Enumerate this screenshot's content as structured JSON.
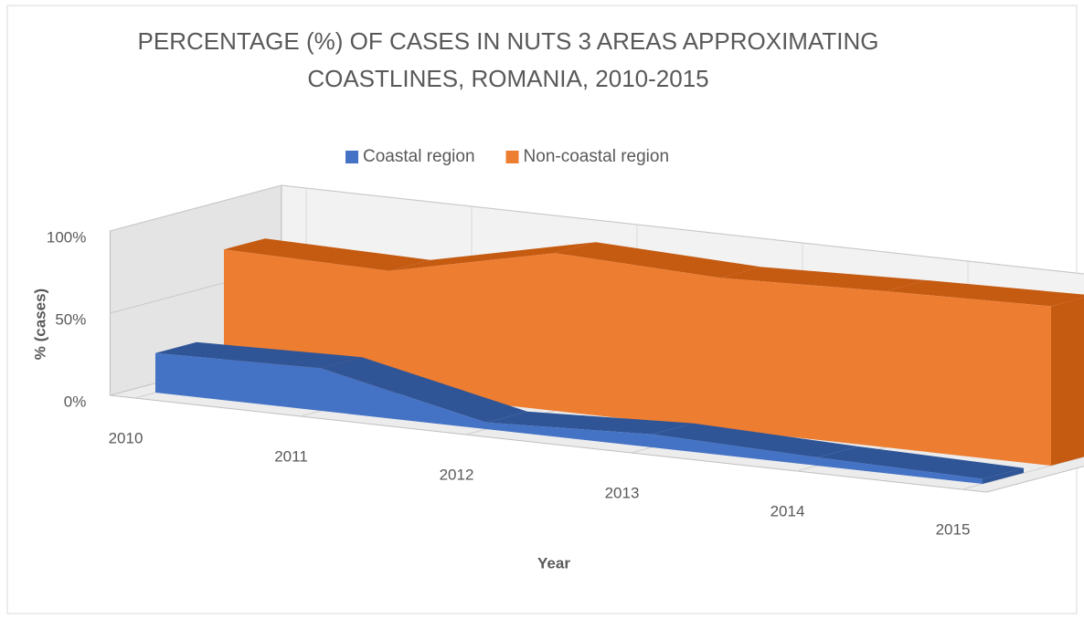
{
  "chart_data": {
    "type": "area3d",
    "title": [
      "PERCENTAGE (%) OF CASES IN NUTS 3 AREAS APPROXIMATING",
      "COASTLINES, ROMANIA, 2010-2015"
    ],
    "x_label": "Year",
    "y_label": "% (cases)",
    "categories": [
      "2010",
      "2011",
      "2012",
      "2013",
      "2014",
      "2015"
    ],
    "series": [
      {
        "name": "Coastal region",
        "color": "#4472c4",
        "top_color": "#2f5597",
        "values": [
          24,
          26,
          4,
          8,
          5,
          3
        ]
      },
      {
        "name": "Non-coastal region",
        "color": "#ed7d31",
        "top_color": "#c55a11",
        "values": [
          76,
          74,
          96,
          92,
          95,
          97
        ]
      }
    ],
    "ylim": [
      0,
      100
    ],
    "yticks": [
      {
        "value": 0,
        "label": "0%"
      },
      {
        "value": 50,
        "label": "50%"
      },
      {
        "value": 100,
        "label": "100%"
      }
    ],
    "grid": true,
    "legend": "top"
  }
}
